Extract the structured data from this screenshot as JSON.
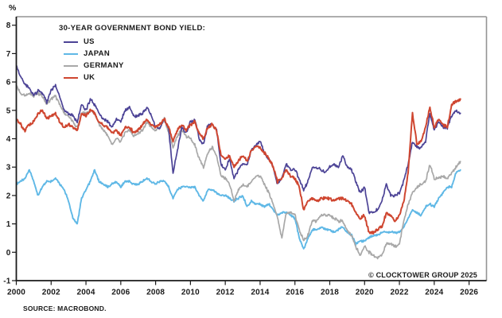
{
  "page": {
    "percent_label": "%",
    "source": "SOURCE: MACROBOND.",
    "copyright": "© CLOCKTOWER GROUP 2025"
  },
  "legend": {
    "title": "30-YEAR GOVERNMENT BOND YIELD:",
    "items": [
      {
        "label": "US",
        "color": "#4c4396"
      },
      {
        "label": "JAPAN",
        "color": "#5fb8e6"
      },
      {
        "label": "GERMANY",
        "color": "#a8a8a8"
      },
      {
        "label": "UK",
        "color": "#cf4630"
      }
    ]
  },
  "chart_data": {
    "type": "line",
    "title": "30-YEAR GOVERNMENT BOND YIELD:",
    "xlabel": "",
    "ylabel": "%",
    "xlim": [
      2000,
      2027
    ],
    "ylim": [
      -1,
      8.3
    ],
    "grid": false,
    "legend_position": "top-left",
    "x_ticks": [
      2000,
      2002,
      2004,
      2006,
      2008,
      2010,
      2012,
      2014,
      2016,
      2018,
      2020,
      2022,
      2024,
      2026
    ],
    "y_ticks": [
      -1,
      0,
      1,
      2,
      3,
      4,
      5,
      6,
      7,
      8
    ],
    "x_start": 2000,
    "x_step": 0.25,
    "x_unit": "year (quarterly samples, 2000–2025.5)",
    "source": "SOURCE: MACROBOND.",
    "annotation": "© CLOCKTOWER GROUP 2025",
    "series": [
      {
        "name": "US",
        "color": "#4c4396",
        "values": [
          6.6,
          6.2,
          5.9,
          5.8,
          5.5,
          5.7,
          5.6,
          5.3,
          5.7,
          5.9,
          5.5,
          5.0,
          4.9,
          4.8,
          4.6,
          5.2,
          5.0,
          5.4,
          5.2,
          4.9,
          4.7,
          4.6,
          4.4,
          4.7,
          4.6,
          5.0,
          5.1,
          4.8,
          4.8,
          4.9,
          5.1,
          4.8,
          4.4,
          4.4,
          4.7,
          4.3,
          2.8,
          3.6,
          4.4,
          4.2,
          4.6,
          4.7,
          4.0,
          3.8,
          4.5,
          4.5,
          4.3,
          3.1,
          2.9,
          3.3,
          2.6,
          2.9,
          3.1,
          3.1,
          3.6,
          3.8,
          3.9,
          3.5,
          3.3,
          3.0,
          2.4,
          2.6,
          3.1,
          2.9,
          2.9,
          2.6,
          2.2,
          2.5,
          3.0,
          3.0,
          2.9,
          2.8,
          3.0,
          3.1,
          3.0,
          3.4,
          3.0,
          2.9,
          2.5,
          2.1,
          2.3,
          1.4,
          1.4,
          1.5,
          1.8,
          2.4,
          2.0,
          2.0,
          2.1,
          2.5,
          3.1,
          3.9,
          3.7,
          3.7,
          3.9,
          4.9,
          4.3,
          4.6,
          4.4,
          4.4,
          4.8,
          5.0,
          4.9
        ]
      },
      {
        "name": "JAPAN",
        "color": "#5fb8e6",
        "values": [
          2.4,
          2.5,
          2.6,
          2.9,
          2.5,
          2.0,
          2.3,
          2.5,
          2.5,
          2.6,
          2.4,
          2.2,
          1.8,
          1.2,
          1.0,
          1.9,
          2.2,
          2.5,
          2.9,
          2.5,
          2.4,
          2.3,
          2.4,
          2.5,
          2.3,
          2.5,
          2.5,
          2.4,
          2.4,
          2.5,
          2.6,
          2.5,
          2.4,
          2.5,
          2.5,
          2.3,
          1.9,
          2.2,
          2.3,
          2.3,
          2.3,
          2.3,
          2.0,
          1.8,
          2.2,
          2.2,
          2.1,
          2.0,
          2.0,
          1.9,
          1.8,
          1.9,
          2.0,
          1.6,
          1.8,
          1.7,
          1.7,
          1.6,
          1.7,
          1.5,
          1.3,
          1.4,
          1.4,
          1.3,
          1.2,
          0.5,
          0.1,
          0.5,
          0.8,
          0.8,
          0.9,
          0.8,
          0.8,
          0.7,
          0.8,
          0.9,
          0.7,
          0.6,
          0.3,
          0.4,
          0.4,
          0.5,
          0.6,
          0.6,
          0.7,
          0.7,
          0.7,
          0.7,
          0.7,
          0.9,
          1.2,
          1.5,
          1.4,
          1.3,
          1.6,
          1.7,
          1.6,
          1.9,
          2.1,
          2.3,
          2.3,
          2.8,
          2.9
        ]
      },
      {
        "name": "GERMANY",
        "color": "#a8a8a8",
        "values": [
          5.9,
          5.6,
          5.5,
          5.6,
          5.5,
          5.6,
          5.5,
          5.2,
          5.4,
          5.5,
          5.2,
          4.9,
          4.8,
          4.6,
          4.4,
          4.9,
          4.9,
          5.0,
          4.9,
          4.5,
          4.3,
          4.1,
          3.8,
          4.0,
          3.9,
          4.2,
          4.3,
          4.1,
          4.2,
          4.3,
          4.6,
          4.4,
          4.3,
          4.4,
          4.7,
          4.2,
          3.7,
          4.1,
          4.3,
          4.1,
          4.0,
          3.8,
          3.3,
          3.0,
          3.5,
          3.7,
          3.4,
          2.7,
          2.6,
          2.4,
          1.8,
          2.2,
          2.4,
          2.3,
          2.5,
          2.7,
          2.7,
          2.4,
          2.1,
          1.7,
          1.2,
          0.5,
          1.4,
          1.4,
          1.3,
          0.8,
          0.4,
          0.6,
          1.1,
          1.1,
          1.3,
          1.3,
          1.3,
          1.2,
          1.1,
          1.1,
          0.8,
          0.6,
          0.2,
          -0.1,
          0.2,
          0.0,
          -0.1,
          -0.2,
          -0.1,
          0.3,
          0.3,
          0.2,
          0.3,
          1.1,
          1.7,
          2.1,
          2.3,
          2.4,
          2.5,
          3.1,
          2.6,
          2.6,
          2.7,
          2.6,
          2.8,
          3.0,
          3.2
        ]
      },
      {
        "name": "UK",
        "color": "#cf4630",
        "values": [
          4.7,
          4.5,
          4.3,
          4.5,
          4.6,
          4.9,
          5.0,
          4.7,
          4.8,
          4.9,
          4.6,
          4.4,
          4.5,
          4.4,
          4.3,
          4.9,
          4.8,
          5.0,
          4.9,
          4.6,
          4.5,
          4.4,
          4.2,
          4.3,
          4.1,
          4.4,
          4.4,
          4.2,
          4.3,
          4.5,
          4.7,
          4.5,
          4.4,
          4.5,
          4.7,
          4.4,
          3.9,
          4.3,
          4.5,
          4.3,
          4.5,
          4.6,
          4.2,
          4.0,
          4.4,
          4.5,
          4.3,
          3.4,
          3.3,
          3.4,
          3.0,
          3.2,
          3.4,
          3.2,
          3.6,
          3.7,
          3.7,
          3.5,
          3.3,
          3.0,
          2.5,
          2.6,
          2.9,
          2.7,
          2.6,
          2.3,
          1.5,
          1.8,
          1.9,
          1.8,
          1.9,
          1.9,
          1.9,
          1.8,
          1.9,
          1.9,
          1.8,
          1.7,
          1.4,
          1.2,
          1.3,
          0.7,
          0.7,
          0.8,
          0.9,
          1.4,
          1.3,
          1.1,
          1.3,
          1.8,
          2.8,
          4.9,
          3.8,
          3.9,
          4.4,
          5.1,
          4.4,
          4.7,
          4.5,
          4.4,
          5.2,
          5.3,
          5.4
        ]
      }
    ]
  }
}
